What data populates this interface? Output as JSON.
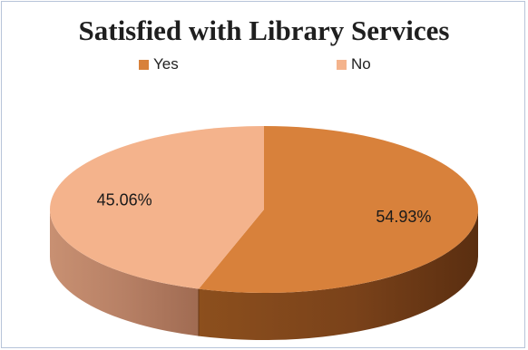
{
  "chart_data": {
    "type": "pie",
    "title": "Satisfied with Library Services",
    "categories": [
      "Yes",
      "No"
    ],
    "values": [
      54.93,
      45.06
    ],
    "labels": [
      "54.93%",
      "45.06%"
    ],
    "colors": [
      "#d8813b",
      "#f4b38c"
    ],
    "legend_position": "top",
    "style": "3d"
  },
  "legend": [
    {
      "label": "Yes",
      "color": "#d8813b"
    },
    {
      "label": "No",
      "color": "#f4b38c"
    }
  ]
}
